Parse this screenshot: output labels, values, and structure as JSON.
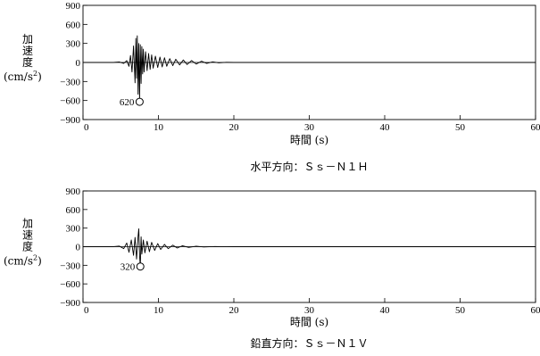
{
  "chart_data": [
    {
      "type": "line",
      "caption": "水平方向：Ｓｓ－Ｎ１Ｈ",
      "ylabel_lines": [
        "加",
        "速",
        "度",
        "(cm/s",
        "2",
        ")"
      ],
      "xlabel": "時間 (s)",
      "xlim": [
        0,
        60
      ],
      "ylim": [
        -900,
        900
      ],
      "xticks": [
        "0",
        "10",
        "20",
        "30",
        "40",
        "50",
        "60"
      ],
      "yticks": [
        "900",
        "600",
        "300",
        "0",
        "-300",
        "-600",
        "-900"
      ],
      "peak": {
        "label": "620",
        "x": 7.5,
        "y": -620
      },
      "x": [
        0,
        4,
        4.8,
        5.4,
        5.8,
        6.1,
        6.3,
        6.5,
        6.7,
        6.9,
        7.0,
        7.1,
        7.2,
        7.3,
        7.4,
        7.5,
        7.6,
        7.7,
        7.8,
        7.9,
        8.0,
        8.1,
        8.3,
        8.5,
        8.7,
        8.9,
        9.1,
        9.3,
        9.6,
        9.9,
        10.2,
        10.5,
        10.8,
        11.1,
        11.5,
        11.9,
        12.3,
        12.8,
        13.3,
        13.8,
        14.4,
        15.0,
        15.7,
        16.4,
        17.2,
        18.0,
        19.0,
        20.0,
        60
      ],
      "y": [
        0,
        0,
        8,
        -15,
        30,
        -60,
        110,
        -150,
        260,
        -320,
        380,
        -250,
        420,
        -500,
        300,
        -620,
        280,
        -330,
        250,
        -180,
        210,
        -150,
        170,
        -130,
        140,
        -110,
        120,
        -90,
        100,
        -80,
        85,
        -70,
        75,
        -60,
        60,
        -50,
        50,
        -40,
        40,
        -32,
        30,
        -25,
        20,
        -15,
        10,
        -6,
        3,
        0,
        0
      ]
    },
    {
      "type": "line",
      "caption": "鉛直方向：Ｓｓ－Ｎ１Ｖ",
      "ylabel_lines": [
        "加",
        "速",
        "度",
        "(cm/s",
        "2",
        ")"
      ],
      "xlabel": "時間 (s)",
      "xlim": [
        0,
        60
      ],
      "ylim": [
        -900,
        900
      ],
      "xticks": [
        "0",
        "10",
        "20",
        "30",
        "40",
        "50",
        "60"
      ],
      "yticks": [
        "900",
        "600",
        "300",
        "0",
        "-300",
        "-600",
        "-900"
      ],
      "peak": {
        "label": "320",
        "x": 7.6,
        "y": -320
      },
      "x": [
        0,
        4,
        4.8,
        5.4,
        5.8,
        6.1,
        6.4,
        6.7,
        6.9,
        7.1,
        7.3,
        7.4,
        7.5,
        7.6,
        7.7,
        7.8,
        8.0,
        8.2,
        8.5,
        8.8,
        9.1,
        9.5,
        9.9,
        10.3,
        10.8,
        11.3,
        11.9,
        12.5,
        13.2,
        14.0,
        15.0,
        16.0,
        17.5,
        19.0,
        20.0,
        60
      ],
      "y": [
        0,
        0,
        10,
        -30,
        60,
        -90,
        110,
        -140,
        150,
        -200,
        170,
        290,
        -150,
        -320,
        160,
        -120,
        110,
        -100,
        90,
        -80,
        70,
        -60,
        50,
        -45,
        38,
        -32,
        26,
        -22,
        16,
        -12,
        8,
        -5,
        3,
        -1,
        0,
        0
      ]
    }
  ]
}
